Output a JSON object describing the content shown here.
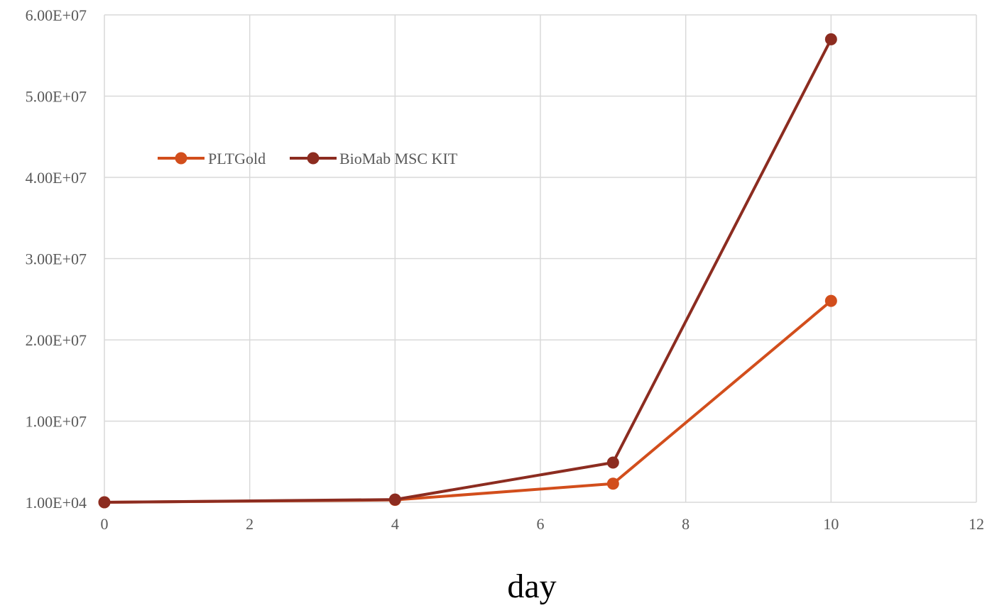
{
  "chart_data": {
    "type": "line",
    "xlabel": "day",
    "ylabel": "",
    "xlim": [
      0,
      12
    ],
    "ylim": [
      10000,
      60000000
    ],
    "x_ticks": [
      "0",
      "2",
      "4",
      "6",
      "8",
      "10",
      "12"
    ],
    "y_ticks": [
      "1.00E+04",
      "1.00E+07",
      "2.00E+07",
      "3.00E+07",
      "4.00E+07",
      "5.00E+07",
      "6.00E+07"
    ],
    "x_tick_values": [
      0,
      2,
      4,
      6,
      8,
      10,
      12
    ],
    "y_tick_values": [
      10000,
      10000000,
      20000000,
      30000000,
      40000000,
      50000000,
      60000000
    ],
    "grid": true,
    "legend_position": "top-left",
    "series": [
      {
        "name": "PLTGold",
        "color": "#d24e1c",
        "x": [
          0,
          4,
          7,
          10
        ],
        "y": [
          10000,
          300000,
          2300000,
          24800000
        ]
      },
      {
        "name": "BioMab MSC KIT",
        "color": "#8c2c20",
        "x": [
          0,
          4,
          7,
          10
        ],
        "y": [
          10000,
          350000,
          4900000,
          57000000
        ]
      }
    ]
  }
}
